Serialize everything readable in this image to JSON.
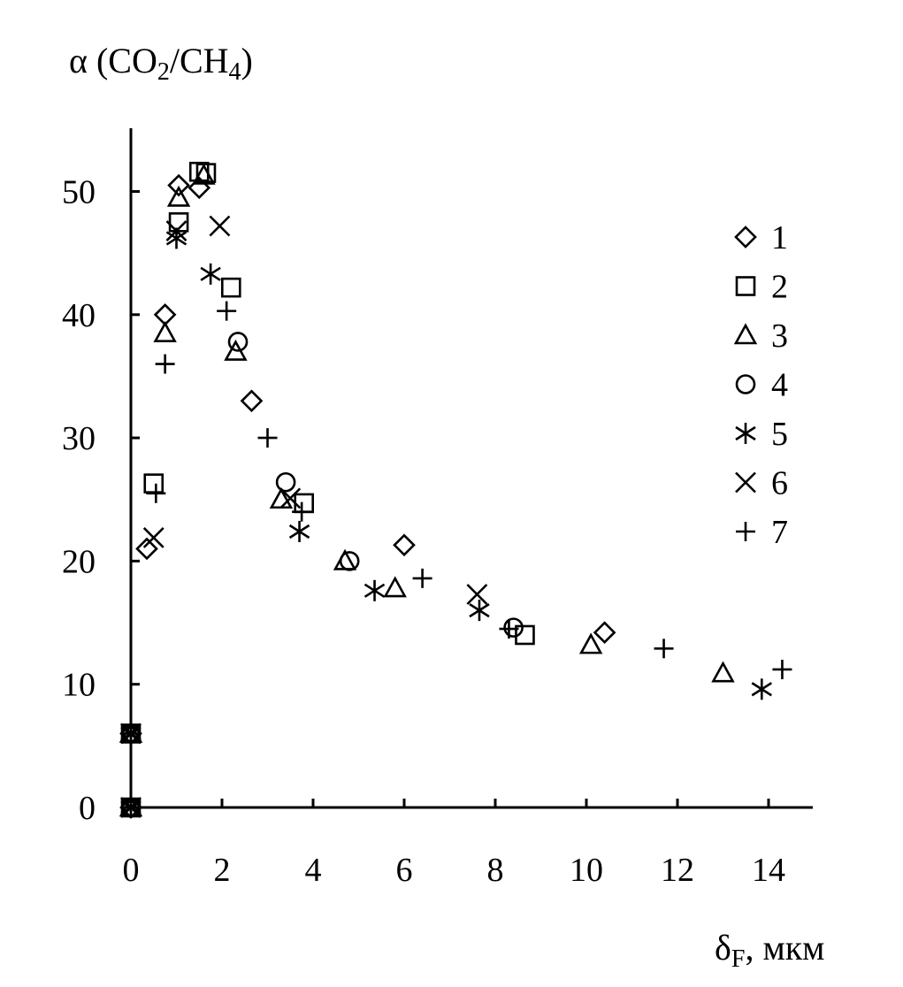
{
  "chart_data": {
    "type": "scatter",
    "ylabel_parts": [
      "α (CO",
      "2",
      "/CH",
      "4",
      ")"
    ],
    "xlabel_parts": [
      "δ",
      "F",
      ", мкм"
    ],
    "xlim": [
      0,
      15
    ],
    "ylim": [
      0,
      55
    ],
    "x_ticks": [
      0,
      2,
      4,
      6,
      8,
      10,
      12,
      14
    ],
    "y_ticks": [
      0,
      10,
      20,
      30,
      40,
      50
    ],
    "grid": false,
    "legend_position": "right",
    "series": [
      {
        "name": "1",
        "marker": "diamond",
        "points": [
          [
            0,
            6
          ],
          [
            0,
            0
          ],
          [
            0.35,
            21
          ],
          [
            0.75,
            40
          ],
          [
            1.05,
            50.5
          ],
          [
            1.5,
            50.3
          ],
          [
            2.65,
            33
          ],
          [
            6,
            21.3
          ],
          [
            10.4,
            14.2
          ]
        ]
      },
      {
        "name": "2",
        "marker": "square",
        "points": [
          [
            0,
            6
          ],
          [
            0,
            0
          ],
          [
            0.5,
            26.3
          ],
          [
            1.05,
            47.5
          ],
          [
            1.5,
            51.6
          ],
          [
            1.65,
            51.5
          ],
          [
            2.2,
            42.2
          ],
          [
            3.8,
            24.7
          ],
          [
            8.65,
            14
          ]
        ]
      },
      {
        "name": "3",
        "marker": "triangle",
        "points": [
          [
            0,
            6
          ],
          [
            0,
            0
          ],
          [
            0.75,
            38.5
          ],
          [
            1.05,
            49.5
          ],
          [
            1.6,
            51.3
          ],
          [
            2.3,
            37
          ],
          [
            3.3,
            25
          ],
          [
            4.7,
            20
          ],
          [
            5.8,
            17.8
          ],
          [
            10.1,
            13.2
          ],
          [
            13,
            10.9
          ]
        ]
      },
      {
        "name": "4",
        "marker": "circle",
        "points": [
          [
            0,
            6
          ],
          [
            0,
            0
          ],
          [
            2.35,
            37.8
          ],
          [
            3.4,
            26.4
          ],
          [
            4.8,
            20
          ],
          [
            8.4,
            14.6
          ]
        ]
      },
      {
        "name": "5",
        "marker": "asterisk",
        "points": [
          [
            0,
            6
          ],
          [
            0,
            0
          ],
          [
            1.0,
            46.2
          ],
          [
            1.75,
            43.3
          ],
          [
            3.7,
            22.4
          ],
          [
            5.35,
            17.6
          ],
          [
            7.65,
            16
          ],
          [
            13.85,
            9.6
          ]
        ]
      },
      {
        "name": "6",
        "marker": "cross",
        "points": [
          [
            0,
            6
          ],
          [
            0,
            0
          ],
          [
            0.5,
            21.9
          ],
          [
            1.0,
            46.8
          ],
          [
            1.95,
            47.2
          ],
          [
            3.5,
            25.1
          ],
          [
            7.6,
            17.3
          ]
        ]
      },
      {
        "name": "7",
        "marker": "plus",
        "points": [
          [
            0,
            6
          ],
          [
            0,
            0
          ],
          [
            0.55,
            25.5
          ],
          [
            0.75,
            36
          ],
          [
            2.1,
            40.3
          ],
          [
            3.0,
            30
          ],
          [
            3.75,
            24
          ],
          [
            6.4,
            18.6
          ],
          [
            8.3,
            14.5
          ],
          [
            11.7,
            12.9
          ],
          [
            14.3,
            11.2
          ]
        ]
      }
    ]
  }
}
